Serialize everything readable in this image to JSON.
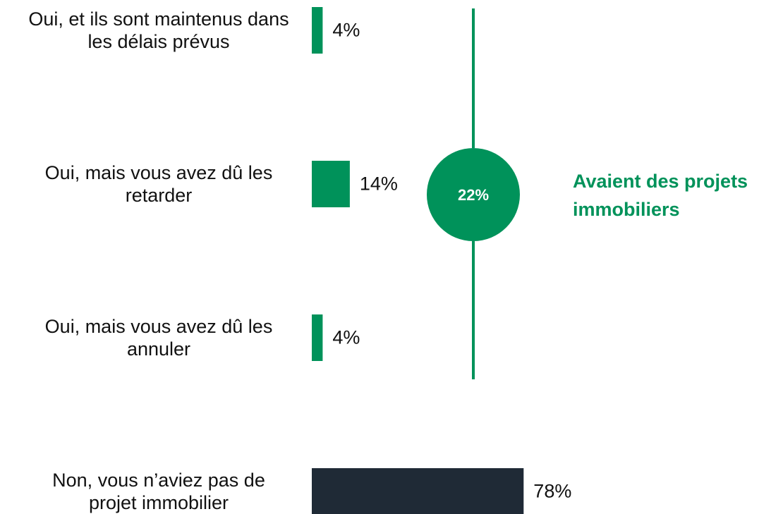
{
  "chart_data": {
    "type": "bar",
    "orientation": "horizontal",
    "categories": [
      "Oui, et ils sont maintenus dans les délais prévus",
      "Oui, mais vous avez dû les retarder",
      "Oui, mais vous avez dû les annuler",
      "Non, vous n’aviez pas de projet immobilier"
    ],
    "values": [
      4,
      14,
      4,
      78
    ],
    "value_labels": [
      "4%",
      "14%",
      "4%",
      "78%"
    ],
    "colors": [
      "#00925a",
      "#00925a",
      "#00925a",
      "#1f2a36"
    ],
    "xlim": [
      0,
      100
    ],
    "annotation": {
      "value": 22,
      "label": "22%",
      "text": "Avaient des projets immobiliers",
      "color": "#00925a"
    }
  }
}
